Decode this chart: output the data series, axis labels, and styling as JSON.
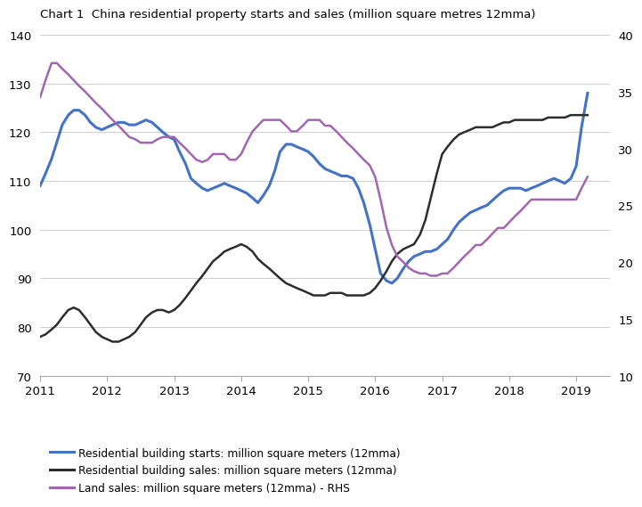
{
  "title": "Chart 1  China residential property starts and sales (million square metres 12mma)",
  "title_fontsize": 9.5,
  "xlim": [
    2011.0,
    2019.5
  ],
  "ylim_left": [
    70,
    140
  ],
  "ylim_right": [
    10,
    40
  ],
  "yticks_left": [
    70,
    80,
    90,
    100,
    110,
    120,
    130,
    140
  ],
  "yticks_right": [
    10,
    15,
    20,
    25,
    30,
    35,
    40
  ],
  "xticks": [
    2011,
    2012,
    2013,
    2014,
    2015,
    2016,
    2017,
    2018,
    2019
  ],
  "colors": {
    "starts": "#4472C4",
    "sales": "#2d2d2d",
    "land": "#A067B0"
  },
  "legend": [
    {
      "label": "Residential building starts: million square meters (12mma)",
      "color": "#4472C4"
    },
    {
      "label": "Residential building sales: million square meters (12mma)",
      "color": "#2d2d2d"
    },
    {
      "label": "Land sales: million square meters (12mma) - RHS",
      "color": "#A067B0"
    }
  ],
  "starts_x": [
    2011.0,
    2011.08,
    2011.17,
    2011.25,
    2011.33,
    2011.42,
    2011.5,
    2011.58,
    2011.67,
    2011.75,
    2011.83,
    2011.92,
    2012.0,
    2012.08,
    2012.17,
    2012.25,
    2012.33,
    2012.42,
    2012.5,
    2012.58,
    2012.67,
    2012.75,
    2012.83,
    2012.92,
    2013.0,
    2013.08,
    2013.17,
    2013.25,
    2013.33,
    2013.42,
    2013.5,
    2013.58,
    2013.67,
    2013.75,
    2013.83,
    2013.92,
    2014.0,
    2014.08,
    2014.17,
    2014.25,
    2014.33,
    2014.42,
    2014.5,
    2014.58,
    2014.67,
    2014.75,
    2014.83,
    2014.92,
    2015.0,
    2015.08,
    2015.17,
    2015.25,
    2015.33,
    2015.42,
    2015.5,
    2015.58,
    2015.67,
    2015.75,
    2015.83,
    2015.92,
    2016.0,
    2016.08,
    2016.17,
    2016.25,
    2016.33,
    2016.42,
    2016.5,
    2016.58,
    2016.67,
    2016.75,
    2016.83,
    2016.92,
    2017.0,
    2017.08,
    2017.17,
    2017.25,
    2017.33,
    2017.42,
    2017.5,
    2017.58,
    2017.67,
    2017.75,
    2017.83,
    2017.92,
    2018.0,
    2018.08,
    2018.17,
    2018.25,
    2018.33,
    2018.42,
    2018.5,
    2018.58,
    2018.67,
    2018.75,
    2018.83,
    2018.92,
    2019.0,
    2019.08,
    2019.17
  ],
  "starts_y": [
    109.0,
    111.5,
    114.5,
    118.0,
    121.5,
    123.5,
    124.5,
    124.5,
    123.5,
    122.0,
    121.0,
    120.5,
    121.0,
    121.5,
    122.0,
    122.0,
    121.5,
    121.5,
    122.0,
    122.5,
    122.0,
    121.0,
    120.0,
    119.0,
    118.5,
    116.0,
    113.5,
    110.5,
    109.5,
    108.5,
    108.0,
    108.5,
    109.0,
    109.5,
    109.0,
    108.5,
    108.0,
    107.5,
    106.5,
    105.5,
    107.0,
    109.0,
    112.0,
    116.0,
    117.5,
    117.5,
    117.0,
    116.5,
    116.0,
    115.0,
    113.5,
    112.5,
    112.0,
    111.5,
    111.0,
    111.0,
    110.5,
    108.5,
    105.5,
    101.0,
    96.0,
    91.0,
    89.5,
    89.0,
    90.0,
    92.0,
    93.5,
    94.5,
    95.0,
    95.5,
    95.5,
    96.0,
    97.0,
    98.0,
    100.0,
    101.5,
    102.5,
    103.5,
    104.0,
    104.5,
    105.0,
    106.0,
    107.0,
    108.0,
    108.5,
    108.5,
    108.5,
    108.0,
    108.5,
    109.0,
    109.5,
    110.0,
    110.5,
    110.0,
    109.5,
    110.5,
    113.0,
    121.0,
    128.0
  ],
  "sales_x": [
    2011.0,
    2011.08,
    2011.17,
    2011.25,
    2011.33,
    2011.42,
    2011.5,
    2011.58,
    2011.67,
    2011.75,
    2011.83,
    2011.92,
    2012.0,
    2012.08,
    2012.17,
    2012.25,
    2012.33,
    2012.42,
    2012.5,
    2012.58,
    2012.67,
    2012.75,
    2012.83,
    2012.92,
    2013.0,
    2013.08,
    2013.17,
    2013.25,
    2013.33,
    2013.42,
    2013.5,
    2013.58,
    2013.67,
    2013.75,
    2013.83,
    2013.92,
    2014.0,
    2014.08,
    2014.17,
    2014.25,
    2014.33,
    2014.42,
    2014.5,
    2014.58,
    2014.67,
    2014.75,
    2014.83,
    2014.92,
    2015.0,
    2015.08,
    2015.17,
    2015.25,
    2015.33,
    2015.42,
    2015.5,
    2015.58,
    2015.67,
    2015.75,
    2015.83,
    2015.92,
    2016.0,
    2016.08,
    2016.17,
    2016.25,
    2016.33,
    2016.42,
    2016.5,
    2016.58,
    2016.67,
    2016.75,
    2016.83,
    2016.92,
    2017.0,
    2017.08,
    2017.17,
    2017.25,
    2017.33,
    2017.42,
    2017.5,
    2017.58,
    2017.67,
    2017.75,
    2017.83,
    2017.92,
    2018.0,
    2018.08,
    2018.17,
    2018.25,
    2018.33,
    2018.42,
    2018.5,
    2018.58,
    2018.67,
    2018.75,
    2018.83,
    2018.92,
    2019.0,
    2019.08,
    2019.17
  ],
  "sales_y": [
    78.0,
    78.5,
    79.5,
    80.5,
    82.0,
    83.5,
    84.0,
    83.5,
    82.0,
    80.5,
    79.0,
    78.0,
    77.5,
    77.0,
    77.0,
    77.5,
    78.0,
    79.0,
    80.5,
    82.0,
    83.0,
    83.5,
    83.5,
    83.0,
    83.5,
    84.5,
    86.0,
    87.5,
    89.0,
    90.5,
    92.0,
    93.5,
    94.5,
    95.5,
    96.0,
    96.5,
    97.0,
    96.5,
    95.5,
    94.0,
    93.0,
    92.0,
    91.0,
    90.0,
    89.0,
    88.5,
    88.0,
    87.5,
    87.0,
    86.5,
    86.5,
    86.5,
    87.0,
    87.0,
    87.0,
    86.5,
    86.5,
    86.5,
    86.5,
    87.0,
    88.0,
    89.5,
    91.5,
    93.5,
    95.0,
    96.0,
    96.5,
    97.0,
    99.0,
    102.0,
    106.5,
    111.5,
    115.5,
    117.0,
    118.5,
    119.5,
    120.0,
    120.5,
    121.0,
    121.0,
    121.0,
    121.0,
    121.5,
    122.0,
    122.0,
    122.5,
    122.5,
    122.5,
    122.5,
    122.5,
    122.5,
    123.0,
    123.0,
    123.0,
    123.0,
    123.5,
    123.5,
    123.5,
    123.5
  ],
  "land_x": [
    2011.0,
    2011.08,
    2011.17,
    2011.25,
    2011.33,
    2011.42,
    2011.5,
    2011.58,
    2011.67,
    2011.75,
    2011.83,
    2011.92,
    2012.0,
    2012.08,
    2012.17,
    2012.25,
    2012.33,
    2012.42,
    2012.5,
    2012.58,
    2012.67,
    2012.75,
    2012.83,
    2012.92,
    2013.0,
    2013.08,
    2013.17,
    2013.25,
    2013.33,
    2013.42,
    2013.5,
    2013.58,
    2013.67,
    2013.75,
    2013.83,
    2013.92,
    2014.0,
    2014.08,
    2014.17,
    2014.25,
    2014.33,
    2014.42,
    2014.5,
    2014.58,
    2014.67,
    2014.75,
    2014.83,
    2014.92,
    2015.0,
    2015.08,
    2015.17,
    2015.25,
    2015.33,
    2015.42,
    2015.5,
    2015.58,
    2015.67,
    2015.75,
    2015.83,
    2015.92,
    2016.0,
    2016.08,
    2016.17,
    2016.25,
    2016.33,
    2016.42,
    2016.5,
    2016.58,
    2016.67,
    2016.75,
    2016.83,
    2016.92,
    2017.0,
    2017.08,
    2017.17,
    2017.25,
    2017.33,
    2017.42,
    2017.5,
    2017.58,
    2017.67,
    2017.75,
    2017.83,
    2017.92,
    2018.0,
    2018.08,
    2018.17,
    2018.25,
    2018.33,
    2018.42,
    2018.5,
    2018.58,
    2018.67,
    2018.75,
    2018.83,
    2018.92,
    2019.0,
    2019.08,
    2019.17
  ],
  "land_y_rhs": [
    34.5,
    36.0,
    37.5,
    37.5,
    37.0,
    36.5,
    36.0,
    35.5,
    35.0,
    34.5,
    34.0,
    33.5,
    33.0,
    32.5,
    32.0,
    31.5,
    31.0,
    30.8,
    30.5,
    30.5,
    30.5,
    30.8,
    31.0,
    31.0,
    31.0,
    30.5,
    30.0,
    29.5,
    29.0,
    28.8,
    29.0,
    29.5,
    29.5,
    29.5,
    29.0,
    29.0,
    29.5,
    30.5,
    31.5,
    32.0,
    32.5,
    32.5,
    32.5,
    32.5,
    32.0,
    31.5,
    31.5,
    32.0,
    32.5,
    32.5,
    32.5,
    32.0,
    32.0,
    31.5,
    31.0,
    30.5,
    30.0,
    29.5,
    29.0,
    28.5,
    27.5,
    25.5,
    23.0,
    21.5,
    20.5,
    20.0,
    19.5,
    19.2,
    19.0,
    19.0,
    18.8,
    18.8,
    19.0,
    19.0,
    19.5,
    20.0,
    20.5,
    21.0,
    21.5,
    21.5,
    22.0,
    22.5,
    23.0,
    23.0,
    23.5,
    24.0,
    24.5,
    25.0,
    25.5,
    25.5,
    25.5,
    25.5,
    25.5,
    25.5,
    25.5,
    25.5,
    25.5,
    26.5,
    27.5
  ]
}
